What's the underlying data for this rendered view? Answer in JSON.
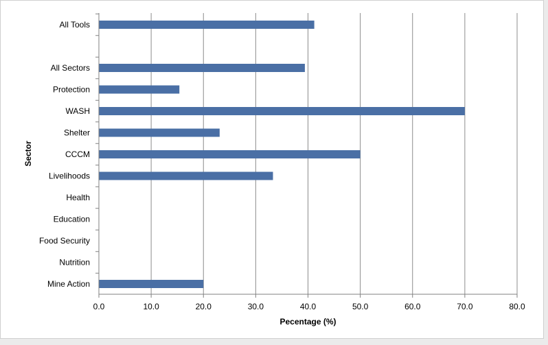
{
  "chart_data": {
    "type": "bar",
    "orientation": "horizontal",
    "title": "",
    "xlabel": "Pecentage (%)",
    "ylabel": "Sector",
    "xlim": [
      0,
      80
    ],
    "x_ticks": [
      "0.0",
      "10.0",
      "20.0",
      "30.0",
      "40.0",
      "50.0",
      "60.0",
      "70.0",
      "80.0"
    ],
    "grid": "vertical",
    "legend": "none",
    "bar_color": "#4a6fa5",
    "categories": [
      "All Tools",
      "",
      "All Sectors",
      "Protection",
      "WASH",
      "Shelter",
      "CCCM",
      "Livelihoods",
      "Health",
      "Education",
      "Food Security",
      "Nutrition",
      "Mine Action"
    ],
    "values": [
      41.2,
      null,
      39.4,
      15.4,
      70.0,
      23.1,
      50.0,
      33.3,
      0,
      0,
      0,
      0,
      20.0
    ]
  }
}
